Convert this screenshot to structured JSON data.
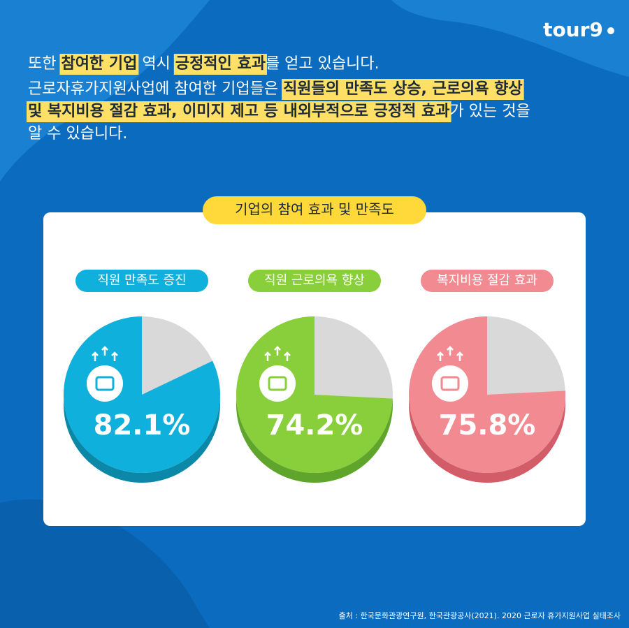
{
  "logo": "tour9",
  "intro": {
    "lines": [
      [
        {
          "text": "또한 ",
          "highlight": false
        },
        {
          "text": "참여한 기업",
          "highlight": true
        },
        {
          "text": " 역시 ",
          "highlight": false
        },
        {
          "text": "긍정적인 효과",
          "highlight": true
        },
        {
          "text": "를 얻고 있습니다.",
          "highlight": false
        }
      ],
      [
        {
          "text": "근로자휴가지원사업에 참여한 기업들은 ",
          "highlight": false
        },
        {
          "text": "직원들의 만족도 상승, 근로의욕 향상",
          "highlight": true
        }
      ],
      [
        {
          "text": "및 복지비용 절감 효과, 이미지 제고 등 내외부적으로 긍정적 효과",
          "highlight": true
        },
        {
          "text": "가 있는 것을",
          "highlight": false
        }
      ],
      [
        {
          "text": "알 수 있습니다.",
          "highlight": false
        }
      ]
    ]
  },
  "section_title": "기업의 참여 효과 및 만족도",
  "chart_data": [
    {
      "type": "pie",
      "title": "직원 만족도 증진",
      "values": [
        82.1
      ],
      "value_labels": [
        "82.1%"
      ],
      "color": "#10b0dc",
      "depth_color": "#0b88a8"
    },
    {
      "type": "pie",
      "title": "직원 근로의욕 향상",
      "values": [
        74.2
      ],
      "value_labels": [
        "74.2%"
      ],
      "color": "#88cf3b",
      "depth_color": "#5fa52b"
    },
    {
      "type": "pie",
      "title": "복지비용 절감 효과",
      "values": [
        75.8
      ],
      "value_labels": [
        "75.8%"
      ],
      "color": "#f28a91",
      "depth_color": "#d25c67"
    }
  ],
  "source": "출처 : 한국문화관광연구원, 한국관광공사(2021). 2020 근로자 휴가지원사업 실태조사"
}
